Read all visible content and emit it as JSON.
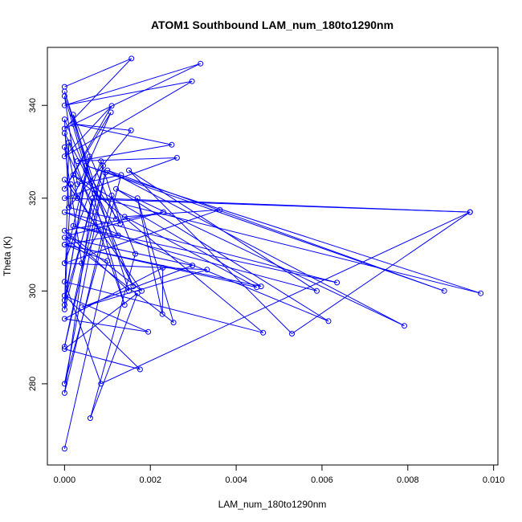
{
  "chart_data": {
    "type": "line",
    "title": "ATOM1 Southbound LAM_num_180to1290nm",
    "xlabel": "LAM_num_180to1290nm",
    "ylabel": "Theta (K)",
    "xlim": [
      -0.0004,
      0.0101
    ],
    "ylim": [
      262.5,
      352.5
    ],
    "xticks": [
      0.0,
      0.002,
      0.004,
      0.006,
      0.008,
      0.01
    ],
    "xtick_labels": [
      "0.000",
      "0.002",
      "0.004",
      "0.006",
      "0.008",
      "0.010"
    ],
    "yticks": [
      280,
      300,
      320,
      340
    ],
    "ytick_labels": [
      "280",
      "300",
      "320",
      "340"
    ],
    "grid": false,
    "marker": "open-circle",
    "series_color": "#0000ff",
    "series": [
      {
        "x": [
          0.0,
          0.00156,
          0.0,
          0.00317,
          0.0,
          0.00297,
          0.0,
          0.0011,
          0.0,
          0.00108,
          0.0001,
          0.00155,
          0.0002,
          0.0025,
          0.0003,
          0.00262,
          0.0,
          0.00945,
          0.0008,
          0.0097,
          0.0005,
          0.00885,
          0.001,
          0.00792,
          0.0012,
          0.00615,
          0.0,
          0.00635,
          0.0002,
          0.00588,
          0.0015,
          0.0053,
          0.00945,
          0.00085,
          0.0,
          0.00463,
          0.0002,
          0.00458,
          0.0,
          0.00448,
          0.0014,
          0.00362,
          0.0,
          0.00332,
          0.0004,
          0.00298,
          0.0,
          0.00254,
          0.0017,
          0.00228,
          0.00229,
          0.0,
          0.00195,
          0.0,
          0.00176,
          0.0,
          0.0017,
          0.0006,
          0.00165,
          0.0011,
          0.0,
          0.00065,
          0.0,
          0.0001,
          0.0014,
          0.0,
          0.0003,
          0.00132,
          0.0,
          0.00095,
          0.0,
          0.0009,
          0.0,
          0.00058,
          0.0,
          0.00085,
          0.0013,
          0.0005,
          0.0,
          0.00015,
          0.0008,
          0.0004,
          0.0,
          0.0016,
          0.0,
          0.0001,
          0.0012,
          0.0002,
          0.0007,
          0.0,
          0.0015,
          0.0001,
          0.0023,
          0.0,
          0.0018,
          0.0,
          0.0003,
          0.0,
          0.00125,
          0.0,
          0.001,
          0.0
        ],
        "y": [
          344.0,
          350.1,
          335.0,
          349.0,
          340.0,
          345.2,
          329.0,
          339.9,
          322.0,
          338.5,
          318.0,
          334.6,
          336.0,
          331.5,
          328.0,
          328.7,
          320.0,
          317.0,
          320.0,
          299.5,
          327.0,
          300.0,
          326.0,
          292.5,
          322.0,
          293.5,
          317.0,
          301.8,
          314.0,
          300.0,
          326.0,
          290.8,
          317.0,
          280.0,
          302.0,
          291.0,
          325.0,
          301.0,
          310.0,
          300.8,
          316.0,
          317.5,
          306.0,
          304.6,
          296.5,
          305.5,
          311.5,
          293.2,
          320.0,
          295.0,
          305.0,
          294.0,
          291.2,
          299.0,
          283.1,
          287.5,
          299.5,
          272.6,
          308.0,
          320.6,
          278.0,
          320.0,
          296.0,
          332.0,
          297.0,
          342.0,
          323.0,
          325.0,
          280.0,
          325.5,
          288.0,
          327.0,
          298.0,
          329.0,
          306.0,
          328.0,
          314.5,
          326.0,
          297.0,
          323.0,
          313.0,
          306.0,
          331.0,
          301.0,
          337.0,
          318.0,
          315.5,
          338.0,
          321.0,
          343.0,
          300.0,
          312.0,
          317.0,
          313.0,
          300.0,
          324.0,
          320.0,
          334.0,
          312.0,
          310.0,
          306.5,
          266.0
        ]
      }
    ]
  }
}
